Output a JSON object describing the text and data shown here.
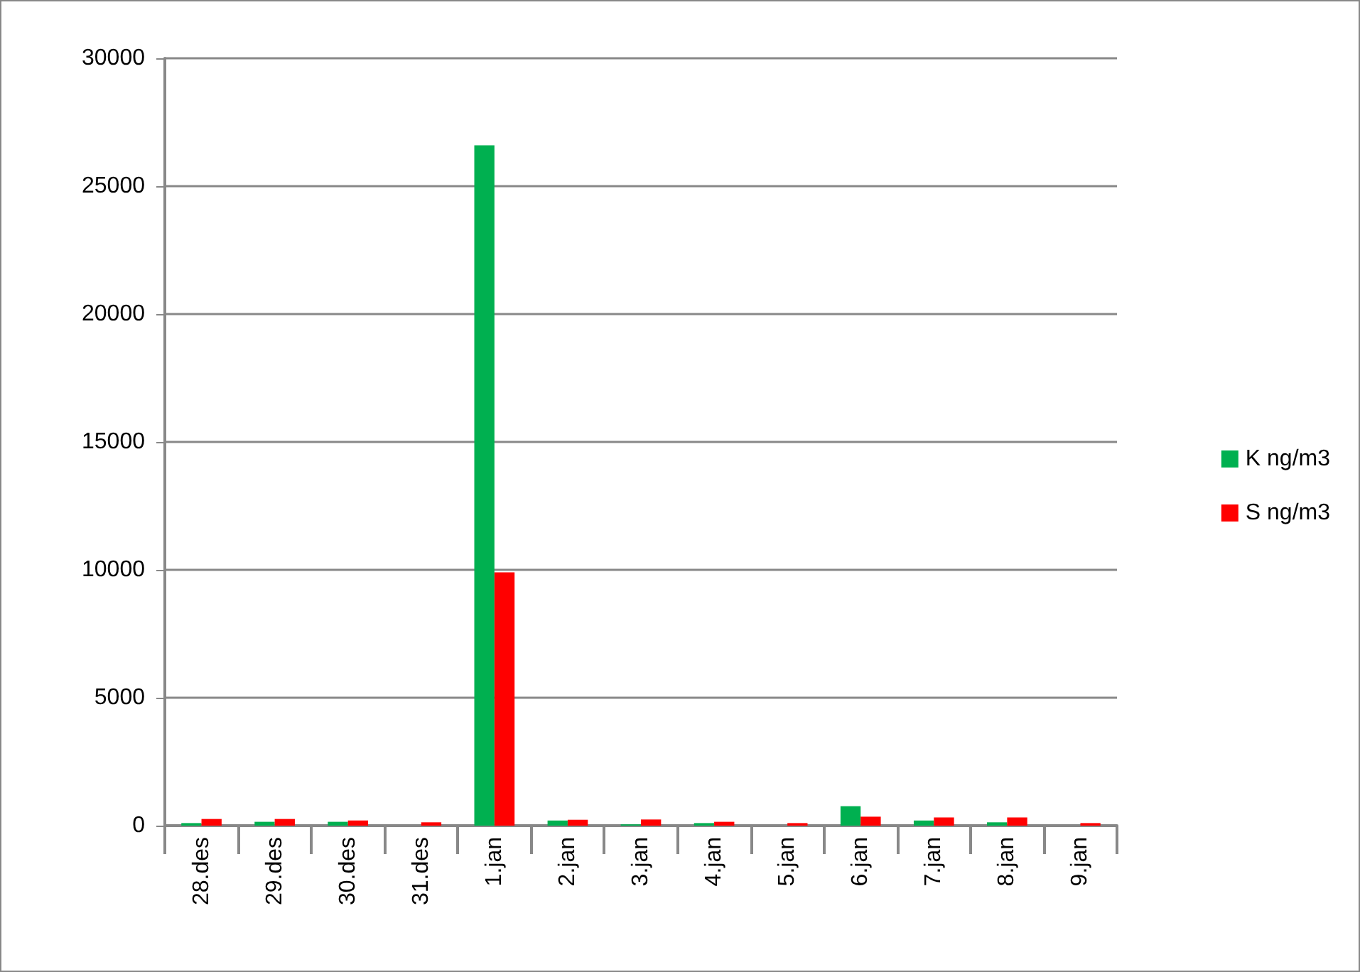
{
  "chart_data": {
    "type": "bar",
    "categories": [
      "28.des",
      "29.des",
      "30.des",
      "31.des",
      "1.jan",
      "2.jan",
      "3.jan",
      "4.jan",
      "5.jan",
      "6.jan",
      "7.jan",
      "8.jan",
      "9.jan"
    ],
    "series": [
      {
        "name": "K ng/m3",
        "color": "#00b050",
        "values": [
          100,
          150,
          150,
          0,
          26600,
          200,
          50,
          100,
          0,
          760,
          200,
          130,
          0
        ]
      },
      {
        "name": "S ng/m3",
        "color": "#ff0000",
        "values": [
          260,
          260,
          200,
          130,
          9900,
          230,
          240,
          150,
          100,
          350,
          320,
          320,
          100
        ]
      }
    ],
    "ylim": [
      0,
      30000
    ],
    "yticks": [
      0,
      5000,
      10000,
      15000,
      20000,
      25000,
      30000
    ],
    "grid": "y",
    "legend": "right"
  }
}
